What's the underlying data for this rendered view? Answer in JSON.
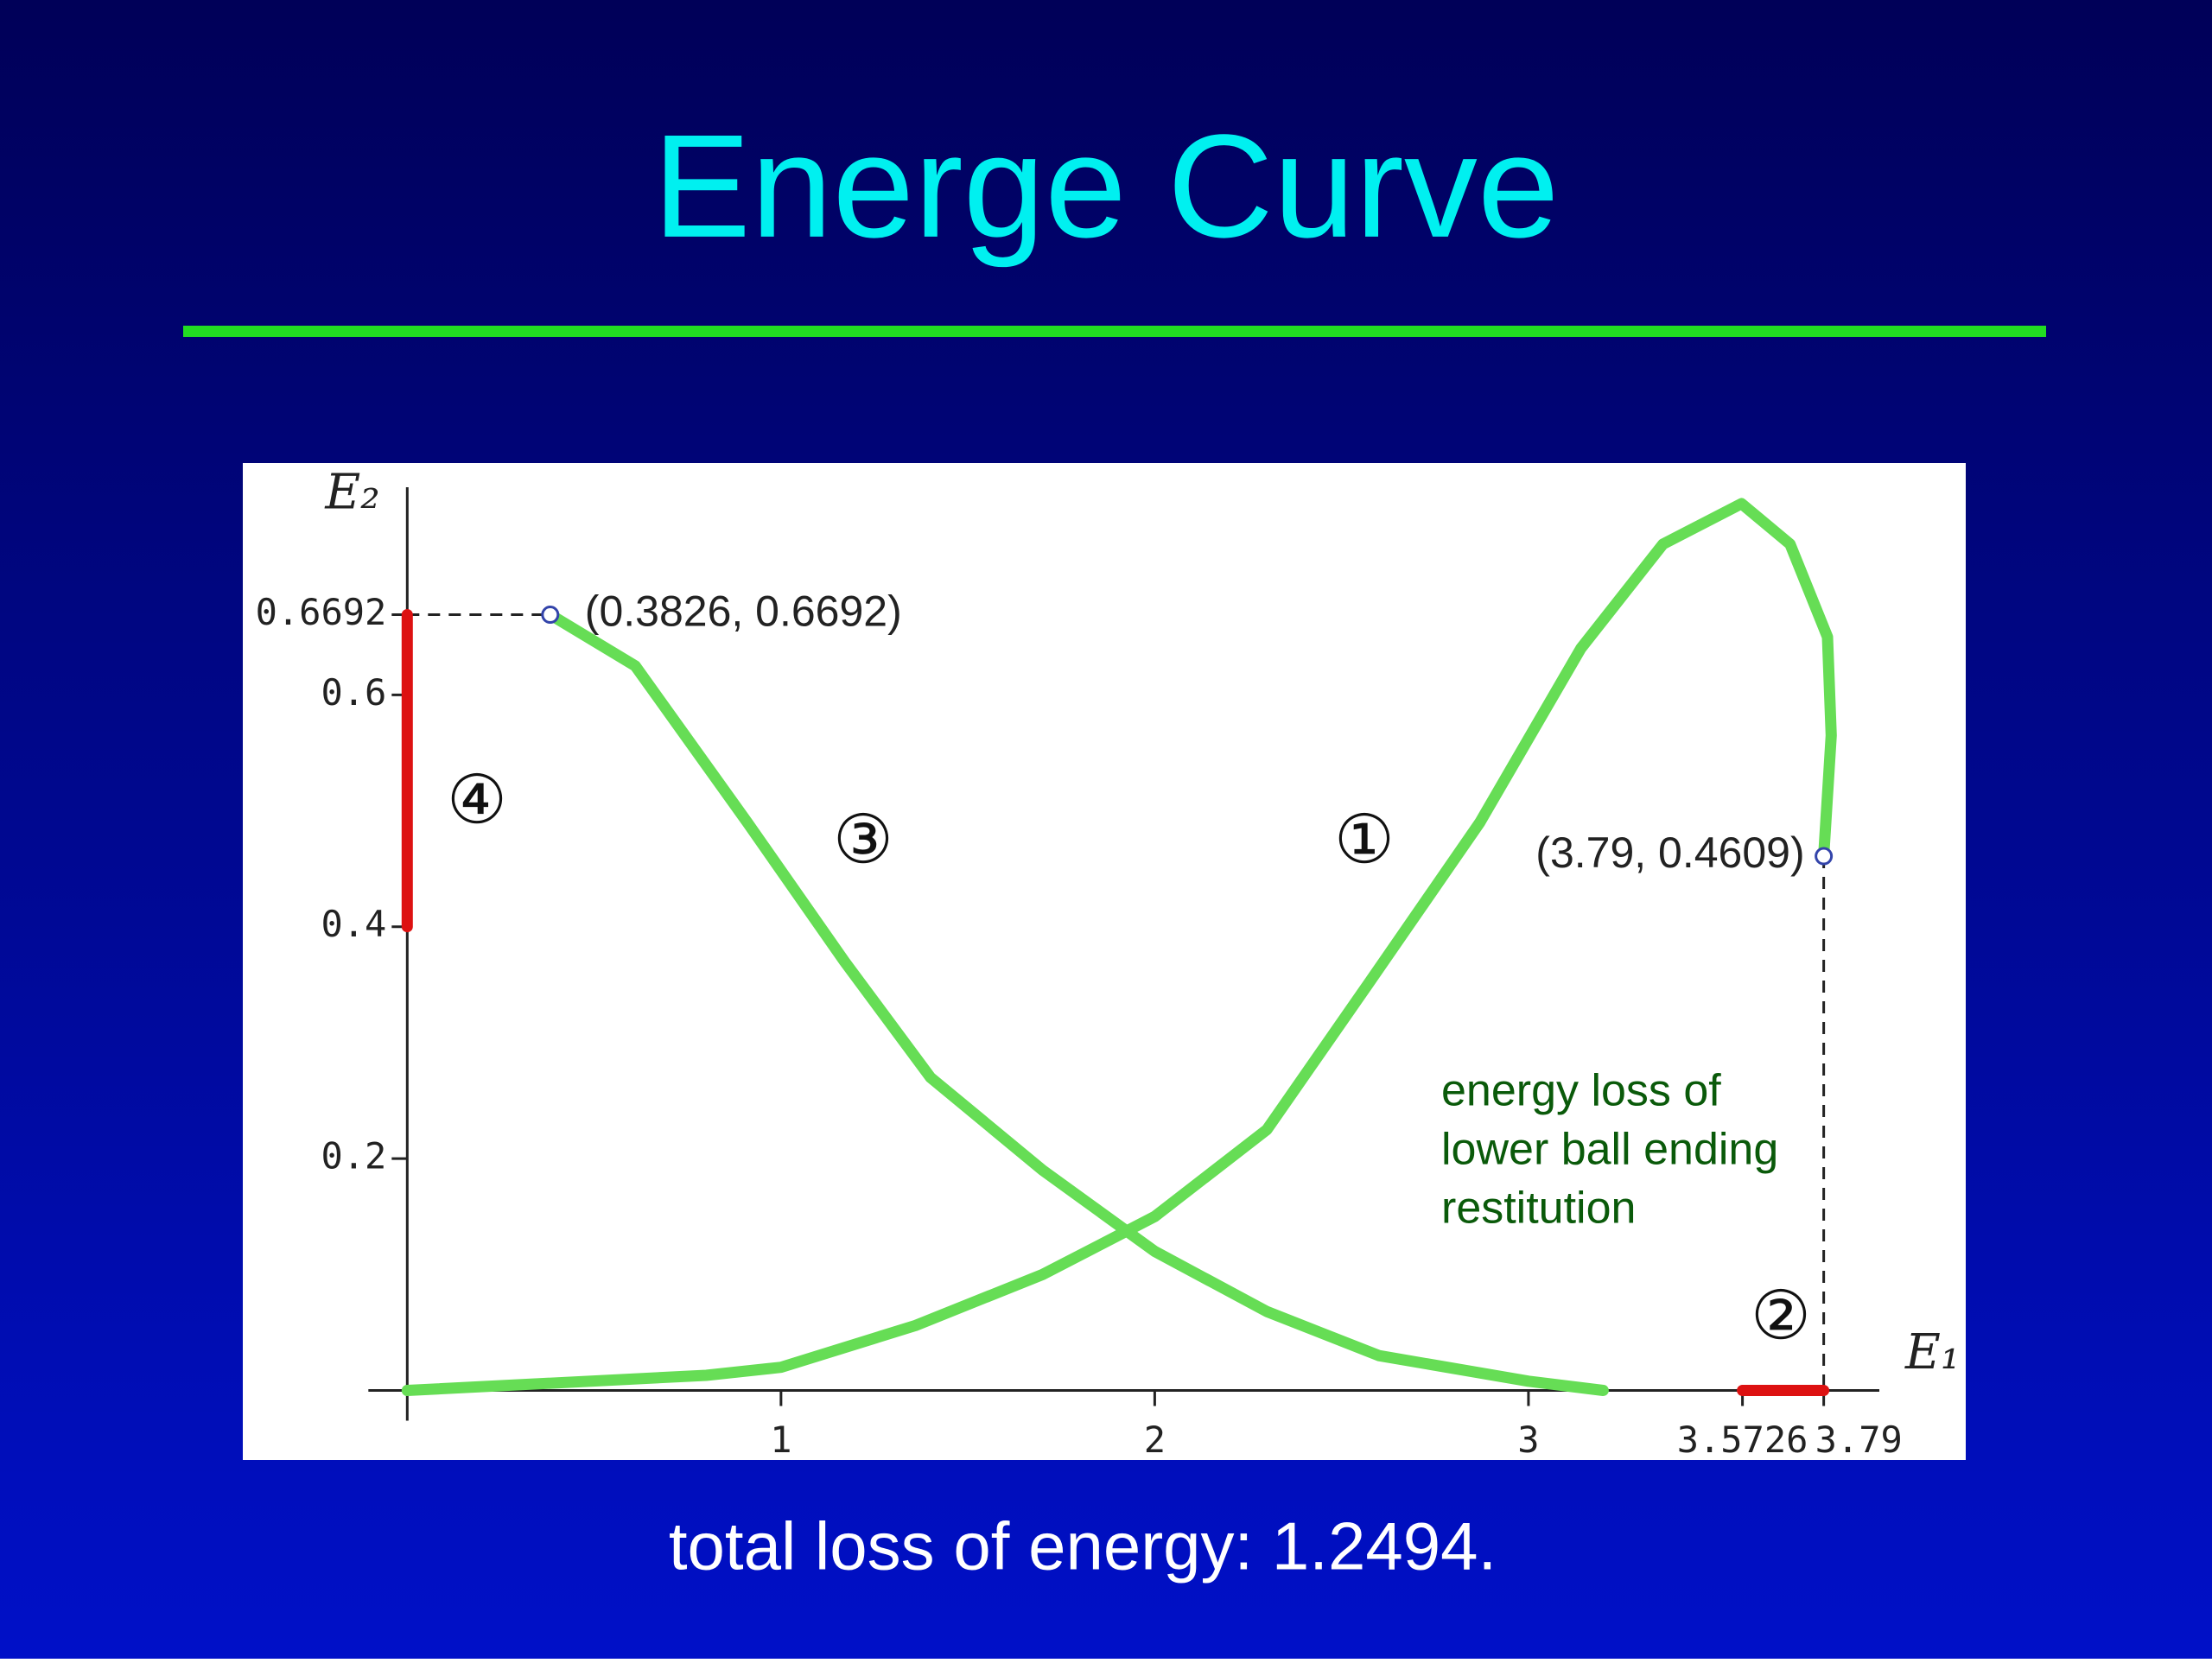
{
  "chart_data": {
    "type": "line",
    "title": "Energe Curve",
    "caption": "total loss of energy: 1.2494.",
    "x_label": "E₁",
    "y_label": "E₂",
    "xlim": [
      -0.44,
      4.17
    ],
    "ylim": [
      -0.06,
      0.8
    ],
    "xticks": [
      1,
      2,
      3,
      3.5726,
      3.79
    ],
    "yticks": [
      0.2,
      0.4,
      0.6,
      0.6692
    ],
    "series": [
      {
        "name": "①",
        "color": "#66dd55",
        "x": [
          0,
          0.8,
          1.0,
          1.36,
          1.7,
          2.0,
          2.3,
          2.57,
          2.87,
          3.14,
          3.36,
          3.57,
          3.7,
          3.8,
          3.81,
          3.79
        ],
        "values": [
          0,
          0.013,
          0.02,
          0.056,
          0.1,
          0.15,
          0.225,
          0.35,
          0.49,
          0.64,
          0.73,
          0.765,
          0.73,
          0.65,
          0.565,
          0.4609
        ]
      },
      {
        "name": "②",
        "color": "#dd1111",
        "x": [
          3.79,
          3.5726
        ],
        "values": [
          0,
          0
        ]
      },
      {
        "name": "③",
        "color": "#66dd55",
        "x": [
          0.3826,
          0.61,
          0.91,
          1.17,
          1.4,
          1.7,
          2.0,
          2.3,
          2.6,
          3.0,
          3.2
        ],
        "values": [
          0.6692,
          0.625,
          0.49,
          0.37,
          0.27,
          0.19,
          0.12,
          0.068,
          0.03,
          0.008,
          0
        ]
      },
      {
        "name": "④",
        "color": "#dd1111",
        "x": [
          0,
          0
        ],
        "values": [
          0.6692,
          0.4
        ]
      }
    ],
    "points": [
      {
        "x": 0.3826,
        "y": 0.6692,
        "label": "(0.3826, 0.6692)"
      },
      {
        "x": 3.79,
        "y": 0.4609,
        "label": "(3.79, 0.4609)"
      }
    ],
    "note": [
      "energy loss of",
      "lower ball ending",
      "restitution"
    ]
  }
}
